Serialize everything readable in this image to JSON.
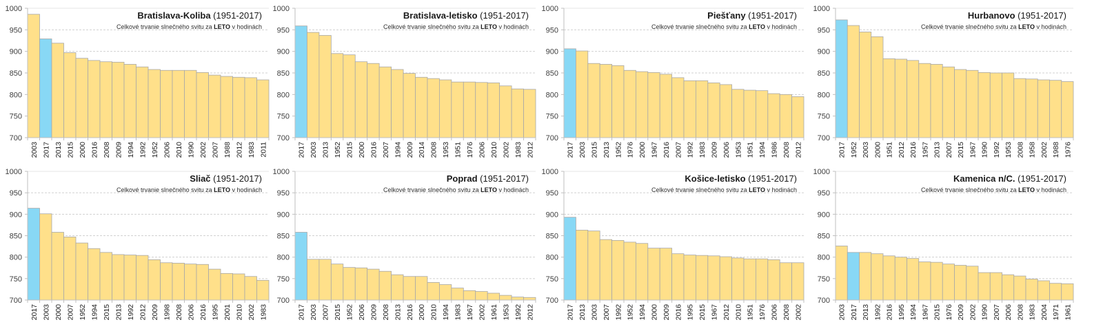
{
  "colors": {
    "bar": "#FFE08A",
    "highlight": "#88D8F5",
    "bar_stroke": "#A8A8A8",
    "grid": "#D0D0D0",
    "axis": "#BFBFBF"
  },
  "chart_data": [
    {
      "type": "bar",
      "station": "Bratislava-Koliba",
      "period": "(1951-2017)",
      "subtitle_pre": "Celkové trvanie slnečného svitu za ",
      "subtitle_bold": "LETO",
      "subtitle_post": " v hodinách",
      "highlight_category": "2017",
      "categories": [
        "2003",
        "2017",
        "2013",
        "2015",
        "2000",
        "2016",
        "2008",
        "2009",
        "1994",
        "1992",
        "1952",
        "2006",
        "2010",
        "1990",
        "2002",
        "2007",
        "1988",
        "2012",
        "1983",
        "2011"
      ],
      "values": [
        986,
        929,
        919,
        897,
        884,
        879,
        876,
        875,
        870,
        864,
        858,
        856,
        856,
        856,
        851,
        845,
        842,
        840,
        839,
        834
      ],
      "ylim": [
        700,
        1000
      ],
      "yticks": [
        700,
        750,
        800,
        850,
        900,
        950,
        1000
      ],
      "grid": true
    },
    {
      "type": "bar",
      "station": "Bratislava-letisko",
      "period": "(1951-2017)",
      "subtitle_pre": "Celkové trvanie slnečného svitu za ",
      "subtitle_bold": "LETO",
      "subtitle_post": " v hodinách",
      "highlight_category": "2017",
      "categories": [
        "2017",
        "2003",
        "2013",
        "1952",
        "2015",
        "2000",
        "2016",
        "2007",
        "1994",
        "2009",
        "2014",
        "2008",
        "1953",
        "1951",
        "1976",
        "2006",
        "2010",
        "2002",
        "1983",
        "2012"
      ],
      "values": [
        959,
        944,
        937,
        895,
        892,
        876,
        872,
        864,
        858,
        849,
        840,
        837,
        834,
        829,
        829,
        828,
        827,
        820,
        813,
        812
      ],
      "ylim": [
        700,
        1000
      ],
      "yticks": [
        700,
        750,
        800,
        850,
        900,
        950,
        1000
      ],
      "grid": true
    },
    {
      "type": "bar",
      "station": "Piešťany",
      "period": "(1951-2017)",
      "subtitle_pre": "Celkové trvanie slnečného svitu za ",
      "subtitle_bold": "LETO",
      "subtitle_post": " v hodinách",
      "highlight_category": "2017",
      "categories": [
        "2017",
        "2003",
        "2015",
        "2013",
        "1952",
        "1976",
        "2000",
        "1967",
        "2016",
        "2007",
        "1992",
        "1983",
        "2009",
        "2006",
        "1953",
        "1951",
        "1994",
        "1986",
        "2008",
        "2012"
      ],
      "values": [
        906,
        901,
        872,
        870,
        867,
        856,
        853,
        851,
        847,
        839,
        832,
        832,
        827,
        823,
        812,
        810,
        809,
        802,
        800,
        795
      ],
      "ylim": [
        700,
        1000
      ],
      "yticks": [
        700,
        750,
        800,
        850,
        900,
        950,
        1000
      ],
      "grid": true
    },
    {
      "type": "bar",
      "station": "Hurbanovo",
      "period": "(1951-2017)",
      "subtitle_pre": "Celkové trvanie slnečného svitu za ",
      "subtitle_bold": "LETO",
      "subtitle_post": " v hodinách",
      "highlight_category": "2017",
      "categories": [
        "2017",
        "1952",
        "2003",
        "2000",
        "1951",
        "2012",
        "2016",
        "1957",
        "2013",
        "2007",
        "2015",
        "1967",
        "1990",
        "1992",
        "1953",
        "2008",
        "1958",
        "2002",
        "1988",
        "1976"
      ],
      "values": [
        973,
        960,
        945,
        934,
        883,
        882,
        879,
        872,
        870,
        864,
        858,
        856,
        851,
        850,
        850,
        837,
        836,
        834,
        833,
        830
      ],
      "ylim": [
        700,
        1000
      ],
      "yticks": [
        700,
        750,
        800,
        850,
        900,
        950,
        1000
      ],
      "grid": true
    },
    {
      "type": "bar",
      "station": "Sliač",
      "period": "(1951-2017)",
      "subtitle_pre": "Celkové trvanie slnečného svitu za ",
      "subtitle_bold": "LETO",
      "subtitle_post": " v hodinách",
      "highlight_category": "2017",
      "categories": [
        "2017",
        "2003",
        "2000",
        "2007",
        "1952",
        "1994",
        "2015",
        "2013",
        "1992",
        "2012",
        "2009",
        "1998",
        "2008",
        "2006",
        "2016",
        "1995",
        "2001",
        "2010",
        "2002",
        "1983"
      ],
      "values": [
        914,
        901,
        858,
        847,
        833,
        820,
        811,
        806,
        805,
        804,
        794,
        787,
        786,
        784,
        783,
        772,
        762,
        761,
        755,
        746
      ],
      "ylim": [
        700,
        1000
      ],
      "yticks": [
        700,
        750,
        800,
        850,
        900,
        950,
        1000
      ],
      "grid": true
    },
    {
      "type": "bar",
      "station": "Poprad",
      "period": "(1951-2017)",
      "subtitle_pre": "Celkové trvanie slnečného svitu za ",
      "subtitle_bold": "LETO",
      "subtitle_post": " v hodinách",
      "highlight_category": "2017",
      "categories": [
        "2017",
        "2003",
        "2007",
        "2015",
        "1952",
        "2006",
        "2009",
        "2008",
        "2013",
        "2016",
        "2000",
        "2010",
        "1994",
        "1983",
        "1967",
        "2002",
        "1961",
        "1953",
        "1992",
        "2012"
      ],
      "values": [
        858,
        795,
        795,
        784,
        776,
        775,
        772,
        767,
        759,
        755,
        755,
        741,
        736,
        728,
        722,
        720,
        716,
        711,
        707,
        706
      ],
      "ylim": [
        700,
        1000
      ],
      "yticks": [
        700,
        750,
        800,
        850,
        900,
        950,
        1000
      ],
      "grid": true
    },
    {
      "type": "bar",
      "station": "Košice-letisko",
      "period": "(1951-2017)",
      "subtitle_pre": "Celkové trvanie slnečného svitu za ",
      "subtitle_bold": "LETO",
      "subtitle_post": " v hodinách",
      "highlight_category": "2017",
      "categories": [
        "2017",
        "2013",
        "2003",
        "2007",
        "1992",
        "1952",
        "1994",
        "2000",
        "2009",
        "2016",
        "1995",
        "2015",
        "1967",
        "2012",
        "2010",
        "1951",
        "1976",
        "2006",
        "2008",
        "2002"
      ],
      "values": [
        893,
        863,
        861,
        841,
        839,
        835,
        832,
        821,
        821,
        808,
        805,
        804,
        803,
        801,
        798,
        796,
        796,
        794,
        787,
        787
      ],
      "ylim": [
        700,
        1000
      ],
      "yticks": [
        700,
        750,
        800,
        850,
        900,
        950,
        1000
      ],
      "grid": true
    },
    {
      "type": "bar",
      "station": "Kamenica n/C.",
      "period": "(1951-2017)",
      "subtitle_pre": "Celkové trvanie slnečného svitu za ",
      "subtitle_bold": "LETO",
      "subtitle_post": " v hodinách",
      "highlight_category": "2017",
      "categories": [
        "2003",
        "2017",
        "2013",
        "1992",
        "2016",
        "1995",
        "1994",
        "1967",
        "2015",
        "1976",
        "2009",
        "2002",
        "1990",
        "2007",
        "2006",
        "2008",
        "1983",
        "2004",
        "1971",
        "1961"
      ],
      "values": [
        826,
        811,
        811,
        808,
        803,
        800,
        797,
        789,
        788,
        784,
        781,
        779,
        764,
        764,
        759,
        756,
        749,
        745,
        739,
        738
      ],
      "ylim": [
        700,
        1000
      ],
      "yticks": [
        700,
        750,
        800,
        850,
        900,
        950,
        1000
      ],
      "grid": true
    }
  ]
}
